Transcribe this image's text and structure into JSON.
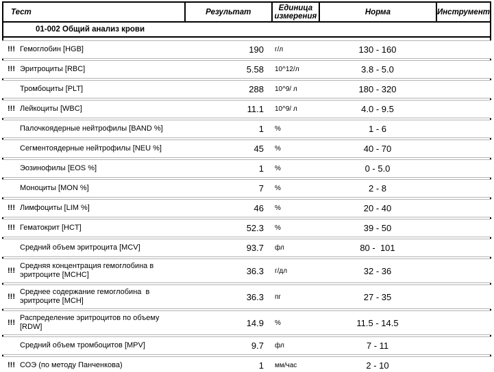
{
  "header": {
    "columns": {
      "test": "Тест",
      "result": "Результат",
      "unit": "Единица\nизмерения",
      "norm": "Норма",
      "instrument": "Инструмент"
    }
  },
  "section": {
    "title": "01-002 Общий анализ крови"
  },
  "rows": [
    {
      "flag": "!!!",
      "test": "Гемоглобин [HGB]",
      "result": "190",
      "unit": "г/л",
      "norm": "130 - 160",
      "instrument": ""
    },
    {
      "flag": "!!!",
      "test": "Эритроциты [RBC]",
      "result": "5.58",
      "unit": "10^12/л",
      "norm": "3.8 - 5.0",
      "instrument": ""
    },
    {
      "flag": "",
      "test": "Тромбоциты [PLT]",
      "result": "288",
      "unit": "10^9/ л",
      "norm": "180 - 320",
      "instrument": ""
    },
    {
      "flag": "!!!",
      "test": "Лейкоциты [WBC]",
      "result": "11.1",
      "unit": "10^9/ л",
      "norm": "4.0 - 9.5",
      "instrument": ""
    },
    {
      "flag": "",
      "test": "Палочкоядерные нейтрофилы [BAND %]",
      "result": "1",
      "unit": "%",
      "norm": "1 - 6",
      "instrument": ""
    },
    {
      "flag": "",
      "test": "Сегментоядерные нейтрофилы [NEU %]",
      "result": "45",
      "unit": "%",
      "norm": "40 - 70",
      "instrument": ""
    },
    {
      "flag": "",
      "test": "Эозинофилы [EOS %]",
      "result": "1",
      "unit": "%",
      "norm": "0 - 5.0",
      "instrument": ""
    },
    {
      "flag": "",
      "test": "Моноциты [MON %]",
      "result": "7",
      "unit": "%",
      "norm": "2 - 8",
      "instrument": ""
    },
    {
      "flag": "!!!",
      "test": "Лимфоциты [LIM %]",
      "result": "46",
      "unit": "%",
      "norm": "20 - 40",
      "instrument": ""
    },
    {
      "flag": "!!!",
      "test": "Гематокрит [HCT]",
      "result": "52.3",
      "unit": "%",
      "norm": "39 - 50",
      "instrument": ""
    },
    {
      "flag": "",
      "test": "Средний объем эритроцита [MCV]",
      "result": "93.7",
      "unit": "фл",
      "norm": "80 -  101",
      "instrument": ""
    },
    {
      "flag": "!!!",
      "test": "Средняя концентрация гемоглобина в эритроците [MCHC]",
      "result": "36.3",
      "unit": "г/дл",
      "norm": "32 - 36",
      "instrument": ""
    },
    {
      "flag": "!!!",
      "test": "Среднее содержание гемоглобина  в эритроците [MCH]",
      "result": "36.3",
      "unit": "пг",
      "norm": "27 - 35",
      "instrument": ""
    },
    {
      "flag": "!!!",
      "test": "Распределение эритроцитов по объему [RDW]",
      "result": "14.9",
      "unit": "%",
      "norm": "11.5 - 14.5",
      "instrument": ""
    },
    {
      "flag": "",
      "test": "Средний объем тромбоцитов [MPV]",
      "result": "9.7",
      "unit": "фл",
      "norm": "7 - 11",
      "instrument": ""
    },
    {
      "flag": "!!!",
      "test": "СОЭ (по методу Панченкова)",
      "result": "1",
      "unit": "мм/час",
      "norm": "2 - 10",
      "instrument": ""
    }
  ]
}
